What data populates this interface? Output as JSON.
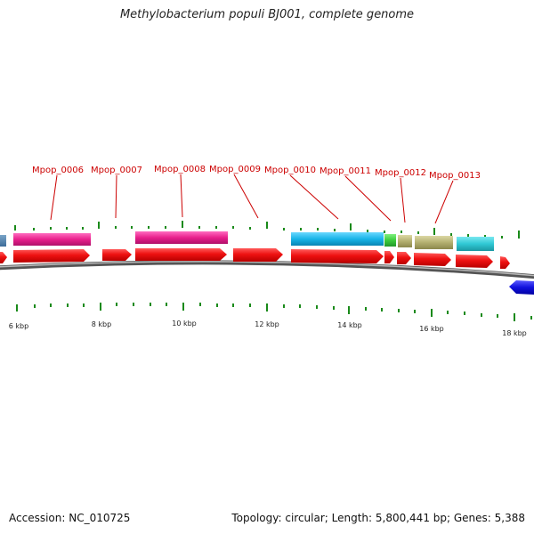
{
  "title": "Methylobacterium populi BJ001, complete genome",
  "footer": {
    "accession": "Accession: NC_010725",
    "summary": "Topology: circular; Length: 5,800,441 bp; Genes: 5,388"
  },
  "colors": {
    "cds_forward": "#ee1111",
    "cds_reverse": "#1010dd",
    "label": "#cc0000",
    "tick": "#1a8a1a",
    "backbone": "#8a8a8a",
    "magenta": "#e8208c",
    "cyan": "#18b4e8",
    "green": "#3ccc3c",
    "khaki": "#b4b070",
    "teal": "#30c8d4"
  },
  "gene_labels": [
    "Mpop_0006",
    "Mpop_0007",
    "Mpop_0008",
    "Mpop_0009",
    "Mpop_0010",
    "Mpop_0011",
    "Mpop_0012",
    "Mpop_0013"
  ],
  "kbp_labels": [
    "6 kbp",
    "8 kbp",
    "10 kbp",
    "12 kbp",
    "14 kbp",
    "16 kbp",
    "18 kbp"
  ]
}
